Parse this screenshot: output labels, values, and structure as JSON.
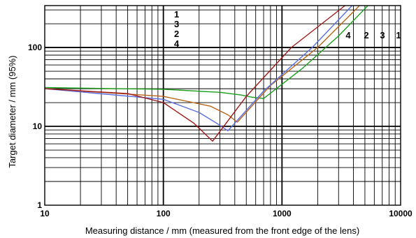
{
  "chart_data": {
    "type": "line",
    "xscale": "log",
    "yscale": "log",
    "xlim": [
      10,
      10000
    ],
    "ylim": [
      1,
      340
    ],
    "xlabel": "Measuring distance / mm (measured from the front edge of the lens)",
    "ylabel": "Target diameter / mm (95%)",
    "x_ticks": [
      {
        "value": 10,
        "label": "10"
      },
      {
        "value": 100,
        "label": "100"
      },
      {
        "value": 1000,
        "label": "1000"
      },
      {
        "value": 10000,
        "label": "10000"
      }
    ],
    "y_ticks": [
      {
        "value": 1,
        "label": "1"
      },
      {
        "value": 10,
        "label": "10"
      },
      {
        "value": 100,
        "label": "100"
      }
    ],
    "grid": true,
    "series": [
      {
        "name": "1",
        "color": "#1a9e1a",
        "x": [
          10,
          100,
          300,
          450,
          550,
          700,
          1500,
          3000,
          5300
        ],
        "y": [
          31,
          29.5,
          27,
          25,
          23.5,
          22.5,
          55,
          140,
          340
        ]
      },
      {
        "name": "2",
        "color": "#b8651a",
        "x": [
          10,
          100,
          250,
          350,
          420,
          800,
          2000,
          4500
        ],
        "y": [
          30,
          24,
          18,
          14,
          11.3,
          33,
          100,
          340
        ]
      },
      {
        "name": "3",
        "color": "#5a6ee0",
        "x": [
          10,
          100,
          200,
          280,
          350,
          700,
          1800,
          3900
        ],
        "y": [
          30,
          22,
          15,
          11,
          8.8,
          28,
          100,
          340
        ]
      },
      {
        "name": "4",
        "color": "#a01818",
        "x": [
          10,
          50,
          100,
          180,
          260,
          500,
          1200,
          3400
        ],
        "y": [
          30,
          26,
          20,
          11,
          6.5,
          24,
          100,
          340
        ]
      }
    ],
    "curve_labels": {
      "upper_left": [
        "1",
        "3",
        "2",
        "4"
      ],
      "upper_right": [
        "4",
        "2",
        "3",
        "1"
      ]
    }
  }
}
